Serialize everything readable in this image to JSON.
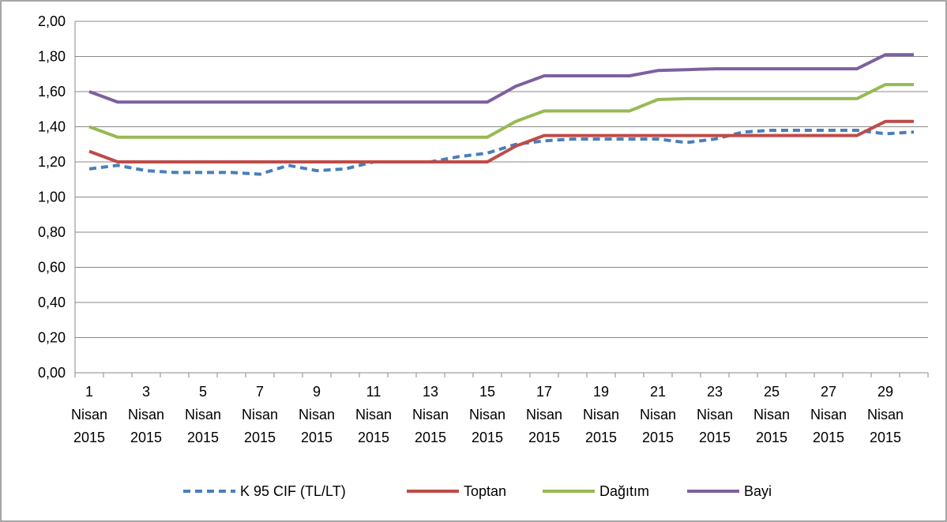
{
  "chart_data": {
    "type": "line",
    "categories": [
      "1 Nisan 2015",
      null,
      "3 Nisan 2015",
      null,
      "5 Nisan 2015",
      null,
      "7 Nisan 2015",
      null,
      "9 Nisan 2015",
      null,
      "11 Nisan 2015",
      null,
      "13 Nisan 2015",
      null,
      "15 Nisan 2015",
      null,
      "17 Nisan 2015",
      null,
      "19 Nisan 2015",
      null,
      "21 Nisan 2015",
      null,
      "23 Nisan 2015",
      null,
      "25 Nisan 2015",
      null,
      "27 Nisan 2015",
      null,
      "29 Nisan 2015",
      null
    ],
    "series": [
      {
        "name": "K 95 CIF (TL/LT)",
        "color": "#4a7ebb",
        "dashed": true,
        "values": [
          1.16,
          1.18,
          1.15,
          1.14,
          1.14,
          1.14,
          1.13,
          1.18,
          1.15,
          1.16,
          1.2,
          1.2,
          1.2,
          1.23,
          1.25,
          1.3,
          1.32,
          1.33,
          1.33,
          1.33,
          1.33,
          1.31,
          1.33,
          1.37,
          1.38,
          1.38,
          1.38,
          1.38,
          1.36,
          1.37
        ]
      },
      {
        "name": "Toptan",
        "color": "#be4b48",
        "dashed": false,
        "values": [
          1.26,
          1.2,
          1.2,
          1.2,
          1.2,
          1.2,
          1.2,
          1.2,
          1.2,
          1.2,
          1.2,
          1.2,
          1.2,
          1.2,
          1.2,
          1.29,
          1.35,
          1.35,
          1.35,
          1.35,
          1.35,
          1.35,
          1.35,
          1.35,
          1.35,
          1.35,
          1.35,
          1.35,
          1.43,
          1.43
        ]
      },
      {
        "name": "Dağıtım",
        "color": "#98b954",
        "dashed": false,
        "values": [
          1.4,
          1.34,
          1.34,
          1.34,
          1.34,
          1.34,
          1.34,
          1.34,
          1.34,
          1.34,
          1.34,
          1.34,
          1.34,
          1.34,
          1.34,
          1.43,
          1.49,
          1.49,
          1.49,
          1.49,
          1.555,
          1.56,
          1.56,
          1.56,
          1.56,
          1.56,
          1.56,
          1.56,
          1.64,
          1.64
        ]
      },
      {
        "name": "Bayi",
        "color": "#7d60a0",
        "dashed": false,
        "values": [
          1.6,
          1.54,
          1.54,
          1.54,
          1.54,
          1.54,
          1.54,
          1.54,
          1.54,
          1.54,
          1.54,
          1.54,
          1.54,
          1.54,
          1.54,
          1.63,
          1.69,
          1.69,
          1.69,
          1.69,
          1.72,
          1.725,
          1.73,
          1.73,
          1.73,
          1.73,
          1.73,
          1.73,
          1.81,
          1.81
        ]
      }
    ],
    "ylim": [
      0,
      2
    ],
    "yticks": [
      {
        "value": 0,
        "label": "0,00"
      },
      {
        "value": 0.2,
        "label": "0,20"
      },
      {
        "value": 0.4,
        "label": "0,40"
      },
      {
        "value": 0.6,
        "label": "0,60"
      },
      {
        "value": 0.8,
        "label": "0,80"
      },
      {
        "value": 1,
        "label": "1,00"
      },
      {
        "value": 1.2,
        "label": "1,20"
      },
      {
        "value": 1.4,
        "label": "1,40"
      },
      {
        "value": 1.6,
        "label": "1,60"
      },
      {
        "value": 1.8,
        "label": "1,80"
      },
      {
        "value": 2,
        "label": "2,00"
      }
    ],
    "grid": true,
    "legend": "bottom"
  }
}
